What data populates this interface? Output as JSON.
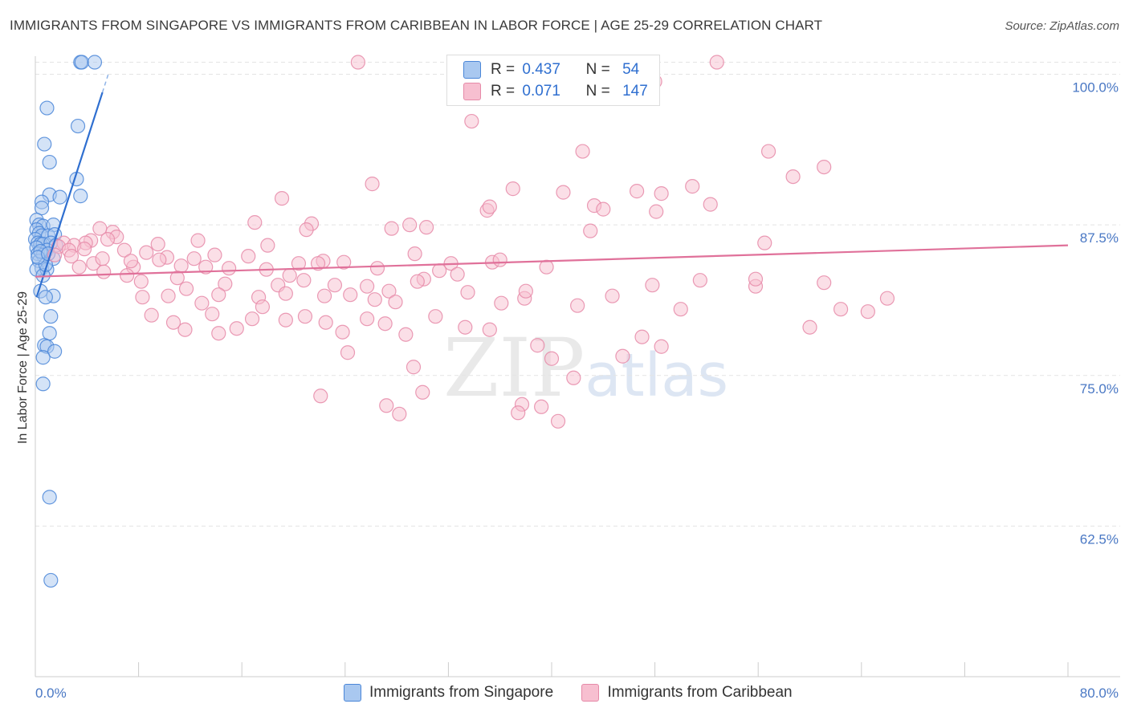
{
  "header": {
    "title": "IMMIGRANTS FROM SINGAPORE VS IMMIGRANTS FROM CARIBBEAN IN LABOR FORCE | AGE 25-29 CORRELATION CHART",
    "source": "Source: ZipAtlas.com"
  },
  "watermark": {
    "zip": "ZIP",
    "atlas": "atlas"
  },
  "legend": {
    "r_label": "R =",
    "n_label": "N =",
    "series": [
      {
        "name": "Immigrants from Singapore",
        "r": "0.437",
        "n": "54",
        "fill": "#a9c8f0",
        "stroke": "#4a86d8"
      },
      {
        "name": "Immigrants from Caribbean",
        "r": "0.071",
        "n": "147",
        "fill": "#f7bfd0",
        "stroke": "#e68aa8"
      }
    ]
  },
  "chart_data": {
    "type": "scatter",
    "title": "IMMIGRANTS FROM SINGAPORE VS IMMIGRANTS FROM CARIBBEAN IN LABOR FORCE | AGE 25-29 CORRELATION CHART",
    "xlabel": "",
    "ylabel": "In Labor Force | Age 25-29",
    "xlim": [
      0,
      80
    ],
    "ylim": [
      50,
      101.5
    ],
    "x_tick_labels": [
      "0.0%",
      "80.0%"
    ],
    "y_ticks": [
      {
        "value": 100,
        "label": "100.0%"
      },
      {
        "value": 87.5,
        "label": "87.5%"
      },
      {
        "value": 75,
        "label": "75.0%"
      },
      {
        "value": 62.5,
        "label": "62.5%"
      }
    ],
    "grid": true,
    "legend_position": "top-center",
    "series": [
      {
        "name": "Immigrants from Singapore",
        "color": "#4a86d8",
        "trend": {
          "x": [
            0.1,
            5.2
          ],
          "y": [
            81.5,
            98.5
          ]
        },
        "points": [
          [
            3.5,
            101
          ],
          [
            3.6,
            101
          ],
          [
            4.6,
            101
          ],
          [
            0.9,
            97.2
          ],
          [
            3.3,
            95.7
          ],
          [
            0.7,
            94.2
          ],
          [
            1.1,
            92.7
          ],
          [
            3.2,
            91.3
          ],
          [
            1.1,
            90.0
          ],
          [
            3.5,
            89.9
          ],
          [
            1.9,
            89.8
          ],
          [
            0.5,
            89.4
          ],
          [
            0.5,
            88.9
          ],
          [
            0.1,
            87.9
          ],
          [
            0.3,
            87.5
          ],
          [
            0.6,
            87.4
          ],
          [
            1.4,
            87.5
          ],
          [
            0.1,
            87.1
          ],
          [
            0.3,
            86.8
          ],
          [
            0.5,
            86.6
          ],
          [
            1.0,
            86.6
          ],
          [
            1.5,
            86.7
          ],
          [
            0.0,
            86.3
          ],
          [
            0.2,
            86.0
          ],
          [
            0.4,
            85.9
          ],
          [
            0.6,
            85.9
          ],
          [
            1.2,
            86.0
          ],
          [
            0.1,
            85.6
          ],
          [
            0.9,
            85.4
          ],
          [
            0.2,
            85.1
          ],
          [
            0.6,
            85.0
          ],
          [
            1.4,
            84.7
          ],
          [
            0.3,
            84.5
          ],
          [
            0.5,
            83.9
          ],
          [
            0.1,
            83.8
          ],
          [
            0.9,
            83.8
          ],
          [
            0.6,
            83.3
          ],
          [
            0.4,
            82.0
          ],
          [
            1.4,
            81.6
          ],
          [
            0.8,
            81.5
          ],
          [
            1.2,
            79.9
          ],
          [
            1.1,
            78.5
          ],
          [
            0.7,
            77.5
          ],
          [
            0.9,
            77.4
          ],
          [
            1.5,
            77.0
          ],
          [
            0.6,
            76.5
          ],
          [
            0.6,
            74.3
          ],
          [
            1.1,
            64.9
          ],
          [
            1.2,
            58.0
          ],
          [
            0.4,
            85.3
          ],
          [
            0.8,
            84.2
          ],
          [
            1.6,
            85.8
          ],
          [
            0.2,
            84.8
          ],
          [
            1.0,
            85.1
          ]
        ]
      },
      {
        "name": "Immigrants from Caribbean",
        "color": "#e68aa8",
        "trend": {
          "x": [
            0.0,
            80.0
          ],
          "y": [
            83.2,
            85.8
          ]
        },
        "points": [
          [
            25.0,
            101
          ],
          [
            52.8,
            101
          ],
          [
            48.0,
            99.4
          ],
          [
            33.8,
            96.1
          ],
          [
            42.4,
            93.6
          ],
          [
            56.8,
            93.6
          ],
          [
            61.1,
            92.3
          ],
          [
            58.7,
            91.5
          ],
          [
            26.1,
            90.9
          ],
          [
            37.0,
            90.5
          ],
          [
            40.9,
            90.2
          ],
          [
            46.6,
            90.3
          ],
          [
            48.5,
            90.1
          ],
          [
            50.9,
            90.7
          ],
          [
            19.1,
            89.7
          ],
          [
            43.3,
            89.1
          ],
          [
            52.3,
            89.2
          ],
          [
            35.0,
            88.7
          ],
          [
            35.2,
            89.0
          ],
          [
            48.1,
            88.6
          ],
          [
            29.0,
            87.5
          ],
          [
            30.3,
            87.3
          ],
          [
            21.4,
            87.6
          ],
          [
            27.6,
            87.2
          ],
          [
            17.0,
            87.7
          ],
          [
            21.0,
            87.1
          ],
          [
            43.0,
            87.0
          ],
          [
            5.0,
            87.2
          ],
          [
            6.0,
            86.9
          ],
          [
            6.3,
            86.5
          ],
          [
            4.3,
            86.2
          ],
          [
            3.9,
            86.0
          ],
          [
            5.6,
            86.3
          ],
          [
            2.2,
            86.0
          ],
          [
            3.0,
            85.8
          ],
          [
            3.8,
            85.5
          ],
          [
            1.8,
            85.7
          ],
          [
            2.6,
            85.4
          ],
          [
            1.5,
            85.0
          ],
          [
            2.8,
            84.9
          ],
          [
            4.5,
            84.3
          ],
          [
            5.2,
            84.7
          ],
          [
            6.9,
            85.4
          ],
          [
            8.6,
            85.2
          ],
          [
            10.2,
            84.8
          ],
          [
            12.3,
            84.7
          ],
          [
            13.9,
            85.0
          ],
          [
            16.5,
            84.9
          ],
          [
            20.4,
            84.3
          ],
          [
            22.3,
            84.5
          ],
          [
            23.9,
            84.4
          ],
          [
            29.4,
            85.1
          ],
          [
            32.2,
            84.3
          ],
          [
            35.4,
            84.4
          ],
          [
            36.0,
            84.6
          ],
          [
            3.4,
            84.0
          ],
          [
            7.6,
            84.0
          ],
          [
            9.6,
            84.6
          ],
          [
            11.3,
            84.1
          ],
          [
            13.2,
            84.0
          ],
          [
            15.0,
            83.9
          ],
          [
            17.9,
            83.8
          ],
          [
            19.7,
            83.3
          ],
          [
            21.9,
            84.3
          ],
          [
            26.5,
            83.9
          ],
          [
            31.3,
            83.7
          ],
          [
            32.7,
            83.4
          ],
          [
            30.1,
            83.0
          ],
          [
            7.1,
            83.3
          ],
          [
            8.2,
            82.8
          ],
          [
            11.0,
            83.1
          ],
          [
            14.7,
            82.6
          ],
          [
            18.8,
            82.5
          ],
          [
            20.8,
            82.9
          ],
          [
            23.2,
            82.5
          ],
          [
            25.7,
            82.4
          ],
          [
            27.4,
            82.0
          ],
          [
            29.6,
            82.8
          ],
          [
            11.7,
            82.2
          ],
          [
            5.3,
            83.6
          ],
          [
            8.3,
            81.5
          ],
          [
            10.3,
            81.6
          ],
          [
            12.9,
            81.0
          ],
          [
            14.2,
            81.7
          ],
          [
            17.3,
            81.5
          ],
          [
            19.4,
            81.8
          ],
          [
            22.4,
            81.6
          ],
          [
            24.4,
            81.7
          ],
          [
            26.3,
            81.3
          ],
          [
            27.9,
            81.1
          ],
          [
            33.5,
            81.9
          ],
          [
            37.9,
            81.4
          ],
          [
            44.7,
            81.6
          ],
          [
            55.8,
            82.4
          ],
          [
            62.4,
            80.5
          ],
          [
            66.0,
            81.4
          ],
          [
            9.0,
            80.0
          ],
          [
            10.7,
            79.4
          ],
          [
            13.7,
            80.1
          ],
          [
            15.6,
            78.9
          ],
          [
            16.8,
            79.7
          ],
          [
            17.6,
            80.7
          ],
          [
            19.4,
            79.6
          ],
          [
            20.9,
            79.9
          ],
          [
            22.5,
            79.4
          ],
          [
            23.8,
            78.6
          ],
          [
            25.7,
            79.7
          ],
          [
            27.1,
            79.3
          ],
          [
            28.7,
            78.4
          ],
          [
            31.0,
            79.9
          ],
          [
            33.3,
            79.0
          ],
          [
            35.2,
            78.8
          ],
          [
            11.6,
            78.8
          ],
          [
            14.2,
            78.5
          ],
          [
            24.2,
            76.9
          ],
          [
            38.9,
            77.5
          ],
          [
            47.0,
            78.2
          ],
          [
            40.0,
            76.4
          ],
          [
            48.5,
            77.4
          ],
          [
            29.3,
            75.7
          ],
          [
            30.0,
            73.6
          ],
          [
            22.1,
            73.3
          ],
          [
            27.2,
            72.5
          ],
          [
            28.2,
            71.8
          ],
          [
            37.7,
            72.6
          ],
          [
            39.2,
            72.4
          ],
          [
            37.4,
            71.9
          ],
          [
            40.5,
            71.2
          ],
          [
            45.5,
            76.6
          ],
          [
            41.7,
            74.8
          ],
          [
            51.5,
            82.9
          ],
          [
            55.8,
            83.0
          ],
          [
            61.1,
            82.7
          ],
          [
            47.8,
            82.5
          ],
          [
            39.6,
            84.0
          ],
          [
            38.0,
            82.0
          ],
          [
            42.0,
            80.8
          ],
          [
            50.0,
            80.5
          ],
          [
            18.0,
            85.8
          ],
          [
            60.0,
            79.0
          ],
          [
            64.5,
            80.3
          ],
          [
            56.5,
            86.0
          ],
          [
            12.6,
            86.2
          ],
          [
            9.5,
            85.9
          ],
          [
            44.0,
            88.8
          ],
          [
            36.1,
            81.0
          ],
          [
            7.4,
            84.5
          ]
        ]
      }
    ]
  }
}
